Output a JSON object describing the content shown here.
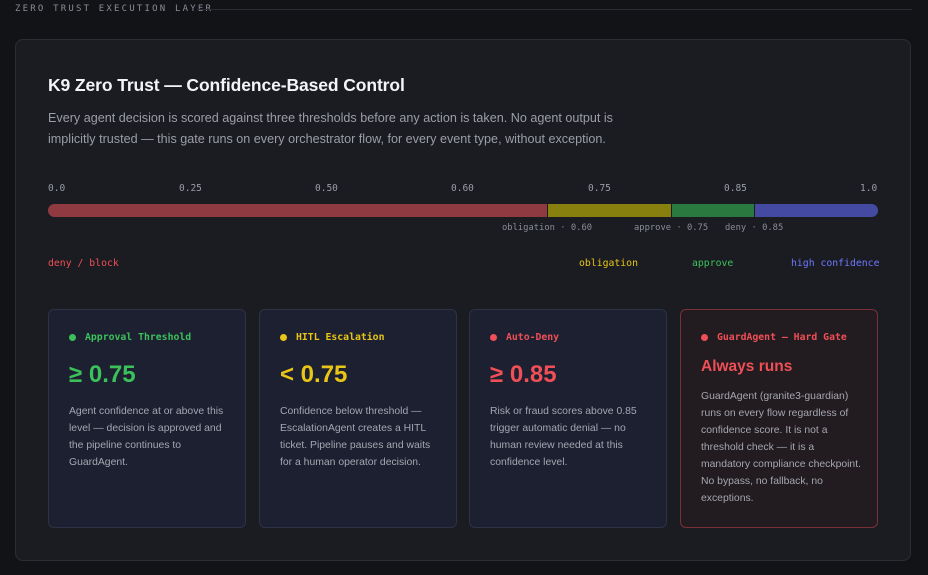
{
  "section": {
    "label": "ZERO TRUST EXECUTION LAYER"
  },
  "panel": {
    "title": "K9 Zero Trust — Confidence-Based Control",
    "subtitle": "Every agent decision is scored against three thresholds before any action is taken. No agent output is implicitly trusted — this gate runs on every orchestrator flow, for every event type, without exception."
  },
  "scale": {
    "ticks": [
      "0.0",
      "0.25",
      "0.50",
      "0.60",
      "0.75",
      "0.85",
      "1.0"
    ],
    "markers": {
      "obligation": "obligation · 0.60",
      "approve": "approve · 0.75",
      "deny": "deny · 0.85"
    },
    "legend": {
      "deny": "deny / block",
      "obligation": "obligation",
      "approve": "approve",
      "high": "high confidence"
    }
  },
  "colors": {
    "green": "#3cc15a",
    "yellow": "#e8c516",
    "red": "#ef4f57",
    "blue": "#6f78ff"
  },
  "cards": [
    {
      "head": "Approval Threshold",
      "value": "≥ 0.75",
      "desc": "Agent confidence at or above this level — decision is approved and the pipeline continues to GuardAgent."
    },
    {
      "head": "HITL Escalation",
      "value": "< 0.75",
      "desc": "Confidence below threshold — EscalationAgent creates a HITL ticket. Pipeline pauses and waits for a human operator decision."
    },
    {
      "head": "Auto-Deny",
      "value": "≥ 0.85",
      "desc": "Risk or fraud scores above 0.85 trigger automatic denial — no human review needed at this confidence level."
    },
    {
      "head": "GuardAgent — Hard Gate",
      "value": "Always runs",
      "desc": "GuardAgent (granite3-guardian) runs on every flow regardless of confidence score. It is not a threshold check — it is a mandatory compliance checkpoint. No bypass, no fallback, no exceptions."
    }
  ]
}
